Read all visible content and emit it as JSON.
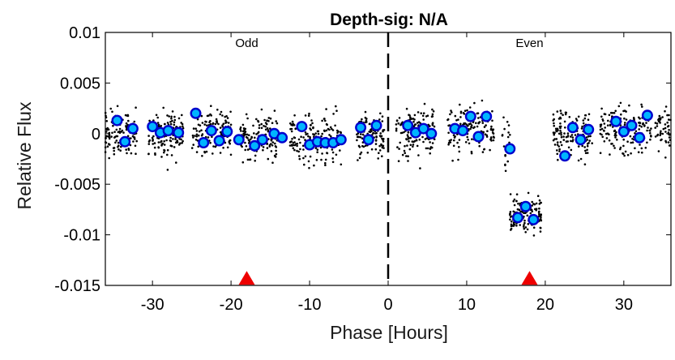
{
  "chart_data": {
    "type": "scatter",
    "title": "Depth-sig: N/A",
    "xlabel": "Phase [Hours]",
    "ylabel": "Relative Flux",
    "xlim": [
      -36,
      36
    ],
    "ylim": [
      -0.015,
      0.01
    ],
    "x_ticks": [
      -30,
      -20,
      -10,
      0,
      10,
      20,
      30
    ],
    "x_tick_labels": [
      "-30",
      "-20",
      "-10",
      "0",
      "10",
      "20",
      "30"
    ],
    "y_ticks": [
      -0.015,
      -0.01,
      -0.005,
      0,
      0.005,
      0.01
    ],
    "y_tick_labels": [
      "-0.015",
      "-0.01",
      "-0.005",
      "0",
      "0.005",
      "0.01"
    ],
    "grid": false,
    "annotations": [
      {
        "text": "Odd",
        "x": -18
      },
      {
        "text": "Even",
        "x": 18
      }
    ],
    "divider_x": 0,
    "transit_markers": {
      "x": [
        -18,
        18
      ],
      "y": -0.0143,
      "color": "#ee0000"
    },
    "binned": {
      "x": [
        -34.5,
        -33.5,
        -32.5,
        -30.0,
        -29.0,
        -28.0,
        -26.7,
        -24.5,
        -23.5,
        -22.5,
        -21.5,
        -20.5,
        -19.0,
        -17.0,
        -16.0,
        -14.5,
        -13.5,
        -11.0,
        -10.0,
        -9.0,
        -8.0,
        -7.0,
        -6.0,
        -3.5,
        -2.5,
        -1.5,
        2.5,
        3.5,
        4.5,
        5.5,
        8.5,
        9.5,
        10.5,
        11.5,
        12.5,
        15.5,
        16.5,
        17.5,
        18.5,
        22.5,
        23.5,
        24.5,
        25.5,
        29.0,
        30.0,
        31.0,
        32.0,
        33.0
      ],
      "y": [
        0.0013,
        -0.0008,
        0.0005,
        0.0007,
        0.0001,
        0.0003,
        0.0001,
        0.002,
        -0.0009,
        0.0003,
        -0.0007,
        0.0002,
        -0.0006,
        -0.0012,
        -0.0006,
        0.0,
        -0.0004,
        0.0007,
        -0.0011,
        -0.0008,
        -0.0009,
        -0.0009,
        -0.0006,
        0.0006,
        -0.0006,
        0.0008,
        0.0008,
        0.0001,
        0.0005,
        0.0,
        0.0005,
        0.0003,
        0.0017,
        -0.0003,
        0.0017,
        -0.0015,
        -0.0083,
        -0.0072,
        -0.0085,
        -0.0022,
        0.0006,
        -0.0006,
        0.0004,
        0.0012,
        0.0002,
        0.0008,
        -0.0004,
        0.0018
      ],
      "fill_color": "#00b4ff",
      "edge_color": "#0000cc"
    },
    "raw_points": {
      "segments": [
        {
          "x_range": [
            -36.0,
            -32.0
          ],
          "y_mean": 0.0,
          "spread": 0.0045,
          "n": 120
        },
        {
          "x_range": [
            -30.5,
            -26.0
          ],
          "y_mean": 0.0,
          "spread": 0.0045,
          "n": 140
        },
        {
          "x_range": [
            -25.0,
            -20.0
          ],
          "y_mean": 0.0,
          "spread": 0.0045,
          "n": 140
        },
        {
          "x_range": [
            -19.0,
            -14.0
          ],
          "y_mean": -0.0003,
          "spread": 0.0045,
          "n": 140
        },
        {
          "x_range": [
            -12.5,
            -6.0
          ],
          "y_mean": -0.0004,
          "spread": 0.0045,
          "n": 160
        },
        {
          "x_range": [
            -4.0,
            -0.5
          ],
          "y_mean": 0.0,
          "spread": 0.0045,
          "n": 110
        },
        {
          "x_range": [
            1.0,
            6.0
          ],
          "y_mean": 0.0003,
          "spread": 0.0045,
          "n": 140
        },
        {
          "x_range": [
            7.5,
            13.5
          ],
          "y_mean": 0.0005,
          "spread": 0.0045,
          "n": 150
        },
        {
          "x_range": [
            14.5,
            15.5
          ],
          "y_mean": -0.001,
          "spread": 0.004,
          "n": 20
        },
        {
          "x_range": [
            15.5,
            19.5
          ],
          "y_mean": -0.008,
          "spread": 0.0035,
          "n": 140
        },
        {
          "x_range": [
            21.0,
            26.0
          ],
          "y_mean": 0.0,
          "spread": 0.0045,
          "n": 140
        },
        {
          "x_range": [
            27.0,
            33.5
          ],
          "y_mean": 0.0005,
          "spread": 0.0045,
          "n": 160
        },
        {
          "x_range": [
            34.0,
            36.0
          ],
          "y_mean": 0.0005,
          "spread": 0.0045,
          "n": 50
        }
      ]
    }
  }
}
